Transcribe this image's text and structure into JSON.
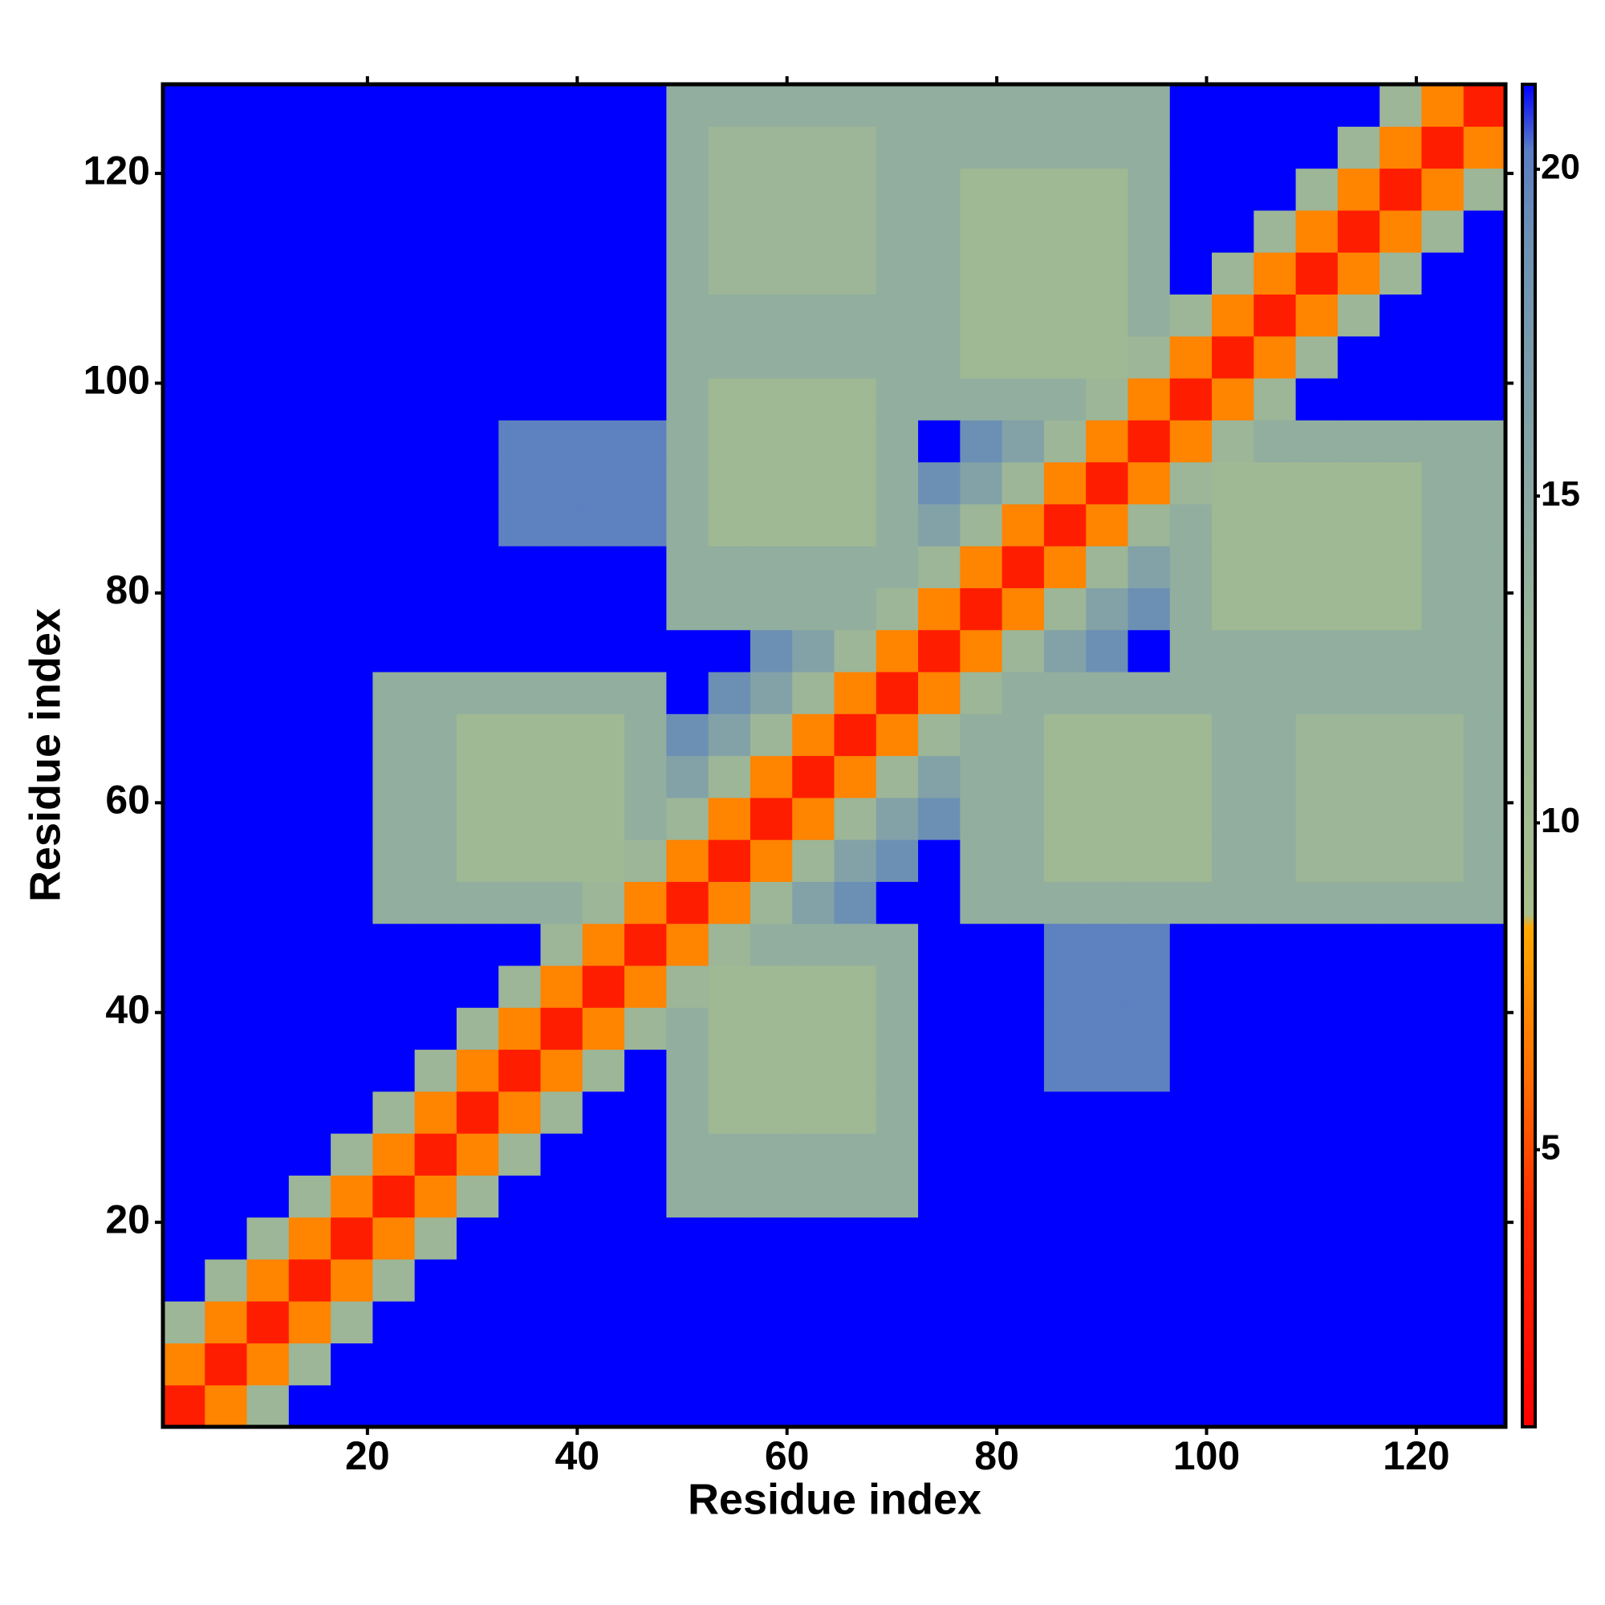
{
  "chart_data": {
    "type": "heatmap",
    "x_label": "Residue index",
    "y_label": "Residue index",
    "x": [
      2.5,
      6.5,
      10.5,
      14.5,
      18.5,
      22.5,
      26.5,
      30.5,
      34.5,
      38.5,
      42.5,
      46.5,
      50.5,
      54.5,
      58.5,
      62.5,
      66.5,
      70.5,
      74.5,
      78.5,
      82.5,
      86.5,
      90.5,
      94.5,
      98.5,
      102.5,
      106.5,
      110.5,
      114.5,
      118.5,
      122.5,
      126.5
    ],
    "y": [
      2.5,
      6.5,
      10.5,
      14.5,
      18.5,
      22.5,
      26.5,
      30.5,
      34.5,
      38.5,
      42.5,
      46.5,
      50.5,
      54.5,
      58.5,
      62.5,
      66.5,
      70.5,
      74.5,
      78.5,
      82.5,
      86.5,
      90.5,
      94.5,
      98.5,
      102.5,
      106.5,
      110.5,
      114.5,
      118.5,
      122.5,
      126.5
    ],
    "z": [
      [
        3,
        7,
        12,
        22,
        22,
        22,
        22,
        22,
        22,
        22,
        22,
        22,
        22,
        22,
        22,
        22,
        22,
        22,
        22,
        22,
        22,
        22,
        22,
        22,
        22,
        22,
        22,
        22,
        22,
        22,
        22,
        22
      ],
      [
        7,
        3,
        7,
        12,
        22,
        22,
        22,
        22,
        22,
        22,
        22,
        22,
        22,
        22,
        22,
        22,
        22,
        22,
        22,
        22,
        22,
        22,
        22,
        22,
        22,
        22,
        22,
        22,
        22,
        22,
        22,
        22
      ],
      [
        12,
        7,
        3,
        7,
        12,
        22,
        22,
        22,
        22,
        22,
        22,
        22,
        22,
        22,
        22,
        22,
        22,
        22,
        22,
        22,
        22,
        22,
        22,
        22,
        22,
        22,
        22,
        22,
        22,
        22,
        22,
        22
      ],
      [
        22,
        12,
        7,
        3,
        7,
        12,
        22,
        22,
        22,
        22,
        22,
        22,
        22,
        22,
        22,
        22,
        22,
        22,
        22,
        22,
        22,
        22,
        22,
        22,
        22,
        22,
        22,
        22,
        22,
        22,
        22,
        22
      ],
      [
        22,
        22,
        12,
        7,
        3,
        7,
        12,
        22,
        22,
        22,
        22,
        22,
        22,
        22,
        22,
        22,
        22,
        22,
        22,
        22,
        22,
        22,
        22,
        22,
        22,
        22,
        22,
        22,
        22,
        22,
        22,
        22
      ],
      [
        22,
        22,
        22,
        12,
        7,
        3,
        7,
        12,
        22,
        22,
        22,
        22,
        14,
        14,
        14,
        14,
        14,
        14,
        22,
        22,
        22,
        22,
        22,
        22,
        22,
        22,
        22,
        22,
        22,
        22,
        22,
        22
      ],
      [
        22,
        22,
        22,
        22,
        12,
        7,
        3,
        7,
        12,
        22,
        22,
        22,
        14,
        14,
        14,
        14,
        14,
        14,
        22,
        22,
        22,
        22,
        22,
        22,
        22,
        22,
        22,
        22,
        22,
        22,
        22,
        22
      ],
      [
        22,
        22,
        22,
        22,
        22,
        12,
        7,
        3,
        7,
        12,
        22,
        22,
        14,
        11,
        11,
        11,
        11,
        14,
        22,
        22,
        22,
        22,
        22,
        22,
        22,
        22,
        22,
        22,
        22,
        22,
        22,
        22
      ],
      [
        22,
        22,
        22,
        22,
        22,
        22,
        12,
        7,
        3,
        7,
        12,
        22,
        14,
        11,
        11,
        11,
        11,
        14,
        22,
        22,
        22,
        20,
        20,
        20,
        22,
        22,
        22,
        22,
        22,
        22,
        22,
        22
      ],
      [
        22,
        22,
        22,
        22,
        22,
        22,
        22,
        12,
        7,
        3,
        7,
        12,
        14,
        11,
        11,
        11,
        11,
        14,
        22,
        22,
        22,
        20,
        20,
        20,
        22,
        22,
        22,
        22,
        22,
        22,
        22,
        22
      ],
      [
        22,
        22,
        22,
        22,
        22,
        22,
        22,
        22,
        12,
        7,
        3,
        7,
        12,
        11,
        11,
        11,
        11,
        14,
        22,
        22,
        22,
        20,
        20,
        20,
        22,
        22,
        22,
        22,
        22,
        22,
        22,
        22
      ],
      [
        22,
        22,
        22,
        22,
        22,
        22,
        22,
        22,
        22,
        12,
        7,
        3,
        7,
        12,
        14,
        14,
        14,
        14,
        22,
        22,
        22,
        20,
        20,
        20,
        22,
        22,
        22,
        22,
        22,
        22,
        22,
        22
      ],
      [
        22,
        22,
        22,
        22,
        22,
        14,
        14,
        14,
        14,
        14,
        12,
        7,
        3,
        7,
        12,
        16,
        19,
        22,
        22,
        14,
        14,
        14,
        14,
        14,
        14,
        14,
        14,
        14,
        14,
        14,
        14,
        14
      ],
      [
        22,
        22,
        22,
        22,
        22,
        14,
        14,
        11,
        11,
        11,
        11,
        12,
        7,
        3,
        7,
        12,
        16,
        19,
        22,
        14,
        14,
        11,
        11,
        11,
        11,
        14,
        14,
        12,
        12,
        12,
        12,
        14
      ],
      [
        22,
        22,
        22,
        22,
        22,
        14,
        14,
        11,
        11,
        11,
        11,
        14,
        12,
        7,
        3,
        7,
        12,
        16,
        19,
        14,
        14,
        11,
        11,
        11,
        11,
        14,
        14,
        12,
        12,
        12,
        12,
        14
      ],
      [
        22,
        22,
        22,
        22,
        22,
        14,
        14,
        11,
        11,
        11,
        11,
        14,
        16,
        12,
        7,
        3,
        7,
        12,
        16,
        14,
        14,
        11,
        11,
        11,
        11,
        14,
        14,
        12,
        12,
        12,
        12,
        14
      ],
      [
        22,
        22,
        22,
        22,
        22,
        14,
        14,
        11,
        11,
        11,
        11,
        14,
        19,
        16,
        12,
        7,
        3,
        7,
        12,
        14,
        14,
        11,
        11,
        11,
        11,
        14,
        14,
        12,
        12,
        12,
        12,
        14
      ],
      [
        22,
        22,
        22,
        22,
        22,
        14,
        14,
        14,
        14,
        14,
        14,
        14,
        22,
        19,
        16,
        12,
        7,
        3,
        7,
        12,
        14,
        14,
        14,
        14,
        14,
        14,
        14,
        14,
        14,
        14,
        14,
        14
      ],
      [
        22,
        22,
        22,
        22,
        22,
        22,
        22,
        22,
        22,
        22,
        22,
        22,
        22,
        22,
        19,
        16,
        12,
        7,
        3,
        7,
        12,
        16,
        19,
        22,
        14,
        14,
        14,
        14,
        14,
        14,
        14,
        14
      ],
      [
        22,
        22,
        22,
        22,
        22,
        22,
        22,
        22,
        22,
        22,
        22,
        22,
        14,
        14,
        14,
        14,
        14,
        12,
        7,
        3,
        7,
        12,
        16,
        19,
        14,
        11,
        11,
        11,
        11,
        11,
        14,
        14
      ],
      [
        22,
        22,
        22,
        22,
        22,
        22,
        22,
        22,
        22,
        22,
        22,
        22,
        14,
        14,
        14,
        14,
        14,
        14,
        12,
        7,
        3,
        7,
        12,
        16,
        14,
        11,
        11,
        11,
        11,
        11,
        14,
        14
      ],
      [
        22,
        22,
        22,
        22,
        22,
        22,
        22,
        22,
        20,
        20,
        20,
        20,
        14,
        11,
        11,
        11,
        11,
        14,
        16,
        12,
        7,
        3,
        7,
        12,
        14,
        11,
        11,
        11,
        11,
        11,
        14,
        14
      ],
      [
        22,
        22,
        22,
        22,
        22,
        22,
        22,
        22,
        20,
        20,
        20,
        20,
        14,
        11,
        11,
        11,
        11,
        14,
        19,
        16,
        12,
        7,
        3,
        7,
        12,
        11,
        11,
        11,
        11,
        11,
        14,
        14
      ],
      [
        22,
        22,
        22,
        22,
        22,
        22,
        22,
        22,
        20,
        20,
        20,
        20,
        14,
        11,
        11,
        11,
        11,
        14,
        22,
        19,
        16,
        12,
        7,
        3,
        7,
        12,
        14,
        14,
        14,
        14,
        14,
        14
      ],
      [
        22,
        22,
        22,
        22,
        22,
        22,
        22,
        22,
        22,
        22,
        22,
        22,
        14,
        11,
        11,
        11,
        11,
        14,
        14,
        14,
        14,
        14,
        12,
        7,
        3,
        7,
        12,
        22,
        22,
        22,
        22,
        22
      ],
      [
        22,
        22,
        22,
        22,
        22,
        22,
        22,
        22,
        22,
        22,
        22,
        22,
        14,
        14,
        14,
        14,
        14,
        14,
        14,
        11,
        11,
        11,
        11,
        12,
        7,
        3,
        7,
        12,
        22,
        22,
        22,
        22
      ],
      [
        22,
        22,
        22,
        22,
        22,
        22,
        22,
        22,
        22,
        22,
        22,
        22,
        14,
        14,
        14,
        14,
        14,
        14,
        14,
        11,
        11,
        11,
        11,
        14,
        12,
        7,
        3,
        7,
        12,
        22,
        22,
        22
      ],
      [
        22,
        22,
        22,
        22,
        22,
        22,
        22,
        22,
        22,
        22,
        22,
        22,
        14,
        12,
        12,
        12,
        12,
        14,
        14,
        11,
        11,
        11,
        11,
        14,
        22,
        12,
        7,
        3,
        7,
        12,
        22,
        22
      ],
      [
        22,
        22,
        22,
        22,
        22,
        22,
        22,
        22,
        22,
        22,
        22,
        22,
        14,
        12,
        12,
        12,
        12,
        14,
        14,
        11,
        11,
        11,
        11,
        14,
        22,
        22,
        12,
        7,
        3,
        7,
        12,
        22
      ],
      [
        22,
        22,
        22,
        22,
        22,
        22,
        22,
        22,
        22,
        22,
        22,
        22,
        14,
        12,
        12,
        12,
        12,
        14,
        14,
        11,
        11,
        11,
        11,
        14,
        22,
        22,
        22,
        12,
        7,
        3,
        7,
        12
      ],
      [
        22,
        22,
        22,
        22,
        22,
        22,
        22,
        22,
        22,
        22,
        22,
        22,
        14,
        12,
        12,
        12,
        12,
        14,
        14,
        14,
        14,
        14,
        14,
        14,
        22,
        22,
        22,
        22,
        12,
        7,
        3,
        7
      ],
      [
        22,
        22,
        22,
        22,
        22,
        22,
        22,
        22,
        22,
        22,
        22,
        22,
        14,
        14,
        14,
        14,
        14,
        14,
        14,
        14,
        14,
        14,
        14,
        14,
        22,
        22,
        22,
        22,
        22,
        12,
        7,
        3
      ]
    ],
    "xlim": [
      0.5,
      128.5
    ],
    "ylim": [
      0.5,
      128.5
    ],
    "xticks": [
      20,
      40,
      60,
      80,
      100,
      120
    ],
    "yticks": [
      20,
      40,
      60,
      80,
      100,
      120
    ],
    "zlim": [
      0.76,
      21.3
    ],
    "zticks": [
      5,
      10,
      15,
      20
    ],
    "colorscale": [
      [
        0.76,
        "#ff0000"
      ],
      [
        4,
        "#ff2a00"
      ],
      [
        6,
        "#ff6a00"
      ],
      [
        8.4,
        "#ffa800"
      ],
      [
        8.6,
        "#a8be8c"
      ],
      [
        13,
        "#98b49a"
      ],
      [
        19,
        "#6c90b4"
      ],
      [
        20.3,
        "#5a7cc4"
      ],
      [
        21.3,
        "#0000ff"
      ]
    ]
  }
}
